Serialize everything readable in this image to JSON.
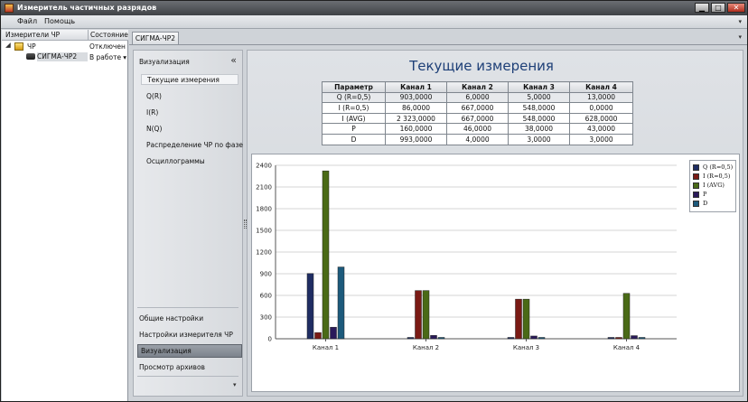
{
  "window": {
    "title": "Измеритель частичных разрядов",
    "controls": {
      "minimize": "▁",
      "maximize": "□",
      "close": "✕"
    }
  },
  "menu": {
    "items": [
      "Файл",
      "Помощь"
    ],
    "more_icon": "▾"
  },
  "tree": {
    "columns": [
      "Измерители ЧР",
      "Состояние"
    ],
    "rows": [
      {
        "name": "ЧР",
        "state": "Отключен",
        "expander": "◢",
        "icon": "folder-icon"
      },
      {
        "name": "СИГМА-ЧР2",
        "state": "В работе",
        "icon": "device-icon",
        "dropdown": "▾"
      }
    ]
  },
  "tab": {
    "label": "СИГМА-ЧР2",
    "menu_icon": "▾"
  },
  "nav": {
    "header": "Визуализация",
    "collapse_icon": "«",
    "items": [
      "Текущие измерения",
      "Q(R)",
      "I(R)",
      "N(Q)",
      "Распределение ЧР по фазе",
      "Осциллограммы"
    ],
    "active_index": 0,
    "bottom_items": [
      "Общие настройки",
      "Настройки измерителя ЧР",
      "Визуализация",
      "Просмотр архивов"
    ],
    "bottom_active_index": 2,
    "more_icon": "▾"
  },
  "content": {
    "title": "Текущие измерения",
    "table": {
      "headers": [
        "Параметр",
        "Канал 1",
        "Канал 2",
        "Канал 3",
        "Канал 4"
      ],
      "rows": [
        [
          "Q (R=0,5)",
          "903,0000",
          "6,0000",
          "5,0000",
          "13,0000"
        ],
        [
          "I (R=0,5)",
          "86,0000",
          "667,0000",
          "548,0000",
          "0,0000"
        ],
        [
          "I (AVG)",
          "2 323,0000",
          "667,0000",
          "548,0000",
          "628,0000"
        ],
        [
          "P",
          "160,0000",
          "46,0000",
          "38,0000",
          "43,0000"
        ],
        [
          "D",
          "993,0000",
          "4,0000",
          "3,0000",
          "3,0000"
        ]
      ]
    }
  },
  "chart_data": {
    "type": "bar",
    "categories": [
      "Канал 1",
      "Канал 2",
      "Канал 3",
      "Канал 4"
    ],
    "series": [
      {
        "name": "Q (R=0,5)",
        "color": "#1f2d63",
        "values": [
          903,
          6,
          5,
          13
        ]
      },
      {
        "name": "I (R=0,5)",
        "color": "#7a1a14",
        "values": [
          86,
          667,
          548,
          0
        ]
      },
      {
        "name": "I (AVG)",
        "color": "#4a6a16",
        "values": [
          2323,
          667,
          548,
          628
        ]
      },
      {
        "name": "P",
        "color": "#2a1a5a",
        "values": [
          160,
          46,
          38,
          43
        ]
      },
      {
        "name": "D",
        "color": "#1c5a7c",
        "values": [
          993,
          4,
          3,
          3
        ]
      }
    ],
    "y_ticks": [
      "0",
      "300",
      "600",
      "900",
      "1200",
      "1500",
      "1800",
      "2100",
      "2400"
    ],
    "ylim": [
      0,
      2400
    ],
    "grid": true,
    "legend_position": "top-right"
  }
}
